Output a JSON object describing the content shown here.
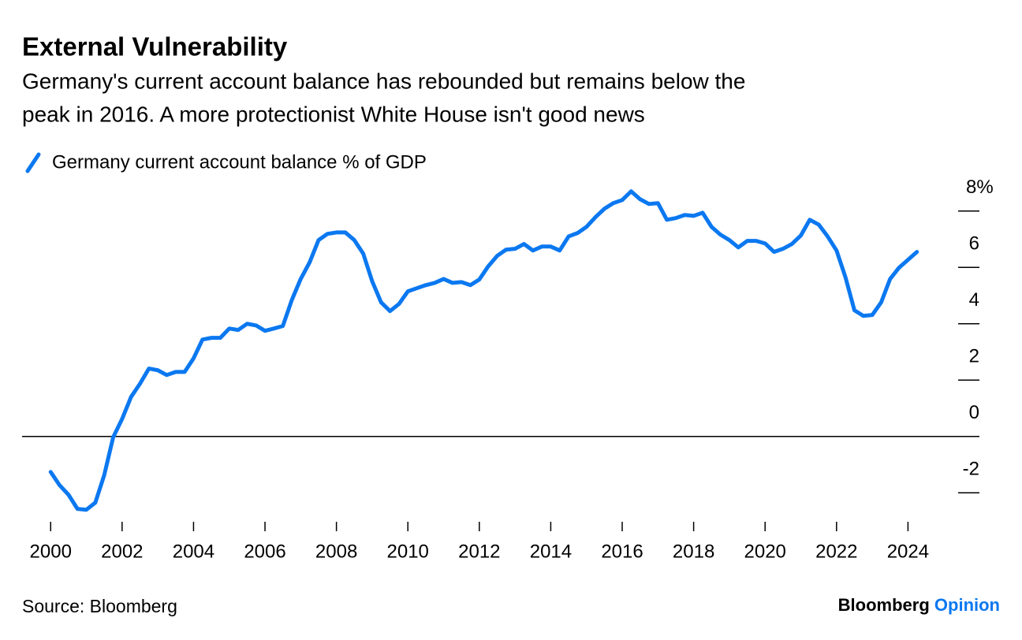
{
  "chart_data": {
    "type": "line",
    "title": "External Vulnerability",
    "subtitle": [
      "Germany's current account balance has rebounded but remains below the",
      "peak in 2016. A more protectionist White House isn't good news"
    ],
    "source": "Source: Bloomberg",
    "brand": [
      "Bloomberg",
      "Opinion"
    ],
    "legend": "corner-top-left",
    "xlim": [
      1999.2,
      2026
    ],
    "ylim": [
      -3,
      9
    ],
    "xticks": [
      2000,
      2002,
      2004,
      2006,
      2008,
      2010,
      2012,
      2014,
      2016,
      2018,
      2020,
      2022,
      2024
    ],
    "yticks": [
      -2,
      0,
      2,
      4,
      6,
      {
        "value": 8,
        "label": "8%"
      }
    ],
    "x": [
      2000,
      2000.25,
      2000.5,
      2000.75,
      2001,
      2001.25,
      2001.5,
      2001.75,
      2002,
      2002.25,
      2002.5,
      2002.75,
      2003,
      2003.25,
      2003.5,
      2003.75,
      2004,
      2004.25,
      2004.5,
      2004.75,
      2005,
      2005.25,
      2005.5,
      2005.75,
      2006,
      2006.25,
      2006.5,
      2006.75,
      2007,
      2007.25,
      2007.5,
      2007.75,
      2008,
      2008.25,
      2008.5,
      2008.75,
      2009,
      2009.25,
      2009.5,
      2009.75,
      2010,
      2010.25,
      2010.5,
      2010.75,
      2011,
      2011.25,
      2011.5,
      2011.75,
      2012,
      2012.25,
      2012.5,
      2012.75,
      2013,
      2013.25,
      2013.5,
      2013.75,
      2014,
      2014.25,
      2014.5,
      2014.75,
      2015,
      2015.25,
      2015.5,
      2015.75,
      2016,
      2016.25,
      2016.5,
      2016.75,
      2017,
      2017.25,
      2017.5,
      2017.75,
      2018,
      2018.25,
      2018.5,
      2018.75,
      2019,
      2019.25,
      2019.5,
      2019.75,
      2020,
      2020.25,
      2020.5,
      2020.75,
      2021,
      2021.25,
      2021.5,
      2021.75,
      2022,
      2022.25,
      2022.5,
      2022.75,
      2023,
      2023.25,
      2023.5,
      2023.75,
      2024,
      2024.25
    ],
    "series": [
      {
        "name": "Germany current account balance % of GDP",
        "color": "#0b78f0",
        "values": [
          -1.26,
          -1.73,
          -2.07,
          -2.57,
          -2.6,
          -2.35,
          -1.37,
          -0.03,
          0.62,
          1.4,
          1.87,
          2.41,
          2.35,
          2.18,
          2.29,
          2.29,
          2.77,
          3.44,
          3.5,
          3.5,
          3.83,
          3.78,
          4.0,
          3.94,
          3.75,
          3.83,
          3.92,
          4.84,
          5.59,
          6.18,
          6.97,
          7.19,
          7.24,
          7.24,
          6.97,
          6.49,
          5.51,
          4.76,
          4.45,
          4.7,
          5.15,
          5.26,
          5.37,
          5.45,
          5.59,
          5.45,
          5.48,
          5.37,
          5.57,
          6.04,
          6.41,
          6.63,
          6.66,
          6.83,
          6.6,
          6.74,
          6.74,
          6.6,
          7.1,
          7.22,
          7.44,
          7.78,
          8.08,
          8.28,
          8.39,
          8.7,
          8.42,
          8.25,
          8.28,
          7.69,
          7.75,
          7.86,
          7.83,
          7.94,
          7.44,
          7.16,
          6.97,
          6.71,
          6.94,
          6.94,
          6.85,
          6.55,
          6.66,
          6.83,
          7.13,
          7.69,
          7.52,
          7.1,
          6.6,
          5.65,
          4.48,
          4.28,
          4.31,
          4.76,
          5.59,
          5.99,
          6.27,
          6.55
        ]
      }
    ]
  }
}
